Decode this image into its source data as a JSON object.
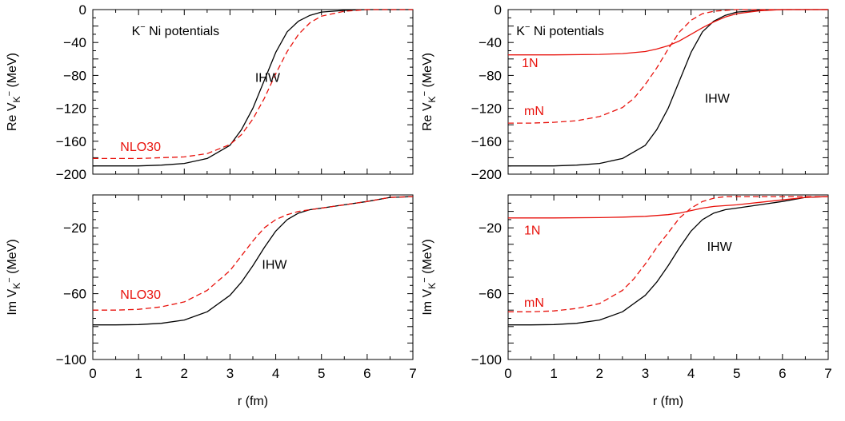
{
  "figure": {
    "x_axis_label": "r (fm)",
    "panel_title": "K⁻ Ni potentials"
  },
  "chart_data": [
    {
      "type": "line",
      "panel": "top-left",
      "ylabel": "Re V_K⁻ (MeV)",
      "title": "K⁻ Ni potentials",
      "xlim": [
        0,
        7
      ],
      "ylim": [
        -200,
        0
      ],
      "xticks": [
        0,
        1,
        2,
        3,
        4,
        5,
        6,
        7
      ],
      "yticks": [
        0,
        -40,
        -80,
        -120,
        -160,
        -200
      ],
      "grid": false,
      "series": [
        {
          "name": "IHW",
          "color": "#000000",
          "dash": "solid",
          "x": [
            0,
            0.5,
            1,
            1.5,
            2,
            2.5,
            3,
            3.25,
            3.5,
            3.75,
            4,
            4.25,
            4.5,
            4.75,
            5,
            5.5,
            6,
            6.5,
            7
          ],
          "y": [
            -190,
            -190,
            -190,
            -189,
            -187,
            -181,
            -165,
            -146,
            -120,
            -86,
            -52,
            -27,
            -14,
            -7,
            -3,
            -1,
            0,
            0,
            0
          ]
        },
        {
          "name": "NLO30",
          "color": "#e8120c",
          "dash": "dashed",
          "x": [
            0,
            0.5,
            1,
            1.5,
            2,
            2.5,
            3,
            3.25,
            3.5,
            3.75,
            4,
            4.25,
            4.5,
            4.75,
            5,
            5.5,
            6,
            6.5,
            7
          ],
          "y": [
            -181,
            -181,
            -181,
            -180,
            -179,
            -175,
            -164,
            -152,
            -133,
            -108,
            -78,
            -51,
            -30,
            -16,
            -8,
            -2,
            0,
            0,
            0
          ]
        }
      ],
      "annotations": [
        {
          "text": "IHW",
          "color": "#000000",
          "x": 3.55,
          "y": -88
        },
        {
          "text": "NLO30",
          "color": "#e8120c",
          "x": 0.6,
          "y": -172
        }
      ]
    },
    {
      "type": "line",
      "panel": "top-right",
      "ylabel": "Re V_K⁻ (MeV)",
      "title": "K⁻ Ni potentials",
      "xlim": [
        0,
        7
      ],
      "ylim": [
        -200,
        0
      ],
      "xticks": [
        0,
        1,
        2,
        3,
        4,
        5,
        6,
        7
      ],
      "yticks": [
        0,
        -40,
        -80,
        -120,
        -160,
        -200
      ],
      "grid": false,
      "series": [
        {
          "name": "IHW",
          "color": "#000000",
          "dash": "solid",
          "x": [
            0,
            0.5,
            1,
            1.5,
            2,
            2.5,
            3,
            3.25,
            3.5,
            3.75,
            4,
            4.25,
            4.5,
            4.75,
            5,
            5.5,
            6,
            6.5,
            7
          ],
          "y": [
            -190,
            -190,
            -190,
            -189,
            -187,
            -181,
            -165,
            -146,
            -120,
            -86,
            -52,
            -27,
            -14,
            -7,
            -3,
            -1,
            0,
            0,
            0
          ]
        },
        {
          "name": "1N",
          "color": "#e8120c",
          "dash": "solid",
          "x": [
            0,
            1,
            2,
            2.5,
            3,
            3.25,
            3.5,
            3.75,
            4,
            4.25,
            4.5,
            4.75,
            5,
            5.5,
            6,
            7
          ],
          "y": [
            -55,
            -55,
            -54.5,
            -53.5,
            -51,
            -48,
            -44,
            -38,
            -30,
            -22,
            -15,
            -9,
            -5,
            -1.5,
            0,
            0
          ]
        },
        {
          "name": "mN",
          "color": "#e8120c",
          "dash": "dashed",
          "x": [
            0,
            0.5,
            1,
            1.5,
            2,
            2.5,
            2.75,
            3,
            3.25,
            3.5,
            3.75,
            4,
            4.25,
            4.5,
            4.75,
            5,
            5.5,
            6,
            7
          ],
          "y": [
            -138,
            -138,
            -137,
            -135,
            -130,
            -119,
            -108,
            -91,
            -71,
            -48,
            -27,
            -13,
            -5,
            -2,
            -1,
            0,
            0,
            0,
            0
          ]
        }
      ],
      "annotations": [
        {
          "text": "1N",
          "color": "#e8120c",
          "x": 0.3,
          "y": -70
        },
        {
          "text": "mN",
          "color": "#e8120c",
          "x": 0.35,
          "y": -128
        },
        {
          "text": "IHW",
          "color": "#000000",
          "x": 4.3,
          "y": -113
        }
      ]
    },
    {
      "type": "line",
      "panel": "bottom-left",
      "ylabel": "Im V_K⁻ (MeV)",
      "xlabel": "r (fm)",
      "xlim": [
        0,
        7
      ],
      "ylim": [
        -100,
        0
      ],
      "xticks": [
        0,
        1,
        2,
        3,
        4,
        5,
        6,
        7
      ],
      "yticks": [
        -20,
        -60,
        -100
      ],
      "grid": false,
      "series": [
        {
          "name": "IHW",
          "color": "#000000",
          "dash": "solid",
          "x": [
            0,
            0.5,
            1,
            1.5,
            2,
            2.5,
            3,
            3.25,
            3.5,
            3.75,
            4,
            4.25,
            4.5,
            4.75,
            5,
            5.5,
            6,
            6.5,
            7
          ],
          "y": [
            -79,
            -79,
            -78.8,
            -78,
            -76,
            -71,
            -61,
            -53,
            -43,
            -32,
            -22,
            -15,
            -11,
            -9,
            -8,
            -6,
            -4,
            -1.5,
            -1
          ]
        },
        {
          "name": "NLO30",
          "color": "#e8120c",
          "dash": "dashed",
          "x": [
            0,
            0.5,
            1,
            1.5,
            2,
            2.5,
            3,
            3.25,
            3.5,
            3.75,
            4,
            4.25,
            4.5,
            4.75,
            5,
            5.5,
            6,
            6.5,
            7
          ],
          "y": [
            -70,
            -70,
            -69.5,
            -68,
            -65,
            -58,
            -46,
            -37,
            -28,
            -20,
            -15,
            -12,
            -10,
            -9,
            -8,
            -6,
            -4,
            -1.5,
            -1
          ]
        }
      ],
      "annotations": [
        {
          "text": "IHW",
          "color": "#000000",
          "x": 3.7,
          "y": -45
        },
        {
          "text": "NLO30",
          "color": "#e8120c",
          "x": 0.6,
          "y": -63
        }
      ]
    },
    {
      "type": "line",
      "panel": "bottom-right",
      "ylabel": "Im V_K⁻ (MeV)",
      "xlabel": "r (fm)",
      "xlim": [
        0,
        7
      ],
      "ylim": [
        -100,
        0
      ],
      "xticks": [
        0,
        1,
        2,
        3,
        4,
        5,
        6,
        7
      ],
      "yticks": [
        -20,
        -60,
        -100
      ],
      "grid": false,
      "series": [
        {
          "name": "IHW",
          "color": "#000000",
          "dash": "solid",
          "x": [
            0,
            0.5,
            1,
            1.5,
            2,
            2.5,
            3,
            3.25,
            3.5,
            3.75,
            4,
            4.25,
            4.5,
            4.75,
            5,
            5.5,
            6,
            6.5,
            7
          ],
          "y": [
            -79,
            -79,
            -78.8,
            -78,
            -76,
            -71,
            -61,
            -53,
            -43,
            -32,
            -22,
            -15,
            -11,
            -9,
            -8,
            -6,
            -4,
            -1.5,
            -1
          ]
        },
        {
          "name": "1N",
          "color": "#e8120c",
          "dash": "solid",
          "x": [
            0,
            1,
            2,
            2.5,
            3,
            3.5,
            3.75,
            4,
            4.25,
            4.5,
            4.75,
            5,
            5.5,
            6,
            6.5,
            7
          ],
          "y": [
            -14,
            -14,
            -13.8,
            -13.5,
            -13,
            -12,
            -11,
            -9.5,
            -8,
            -7,
            -6.5,
            -6,
            -4.5,
            -3,
            -1.5,
            -1
          ]
        },
        {
          "name": "mN",
          "color": "#e8120c",
          "dash": "dashed",
          "x": [
            0,
            0.5,
            1,
            1.5,
            2,
            2.5,
            2.75,
            3,
            3.25,
            3.5,
            3.75,
            4,
            4.25,
            4.5,
            4.75,
            5,
            5.5,
            6,
            7
          ],
          "y": [
            -71,
            -71,
            -70.5,
            -69,
            -66,
            -58,
            -51,
            -42,
            -32,
            -23,
            -14,
            -8,
            -4,
            -2,
            -1,
            -1,
            -1,
            -1,
            -1
          ]
        }
      ],
      "annotations": [
        {
          "text": "1N",
          "color": "#e8120c",
          "x": 0.35,
          "y": -24
        },
        {
          "text": "mN",
          "color": "#e8120c",
          "x": 0.35,
          "y": -68
        },
        {
          "text": "IHW",
          "color": "#000000",
          "x": 4.35,
          "y": -34
        }
      ]
    }
  ]
}
